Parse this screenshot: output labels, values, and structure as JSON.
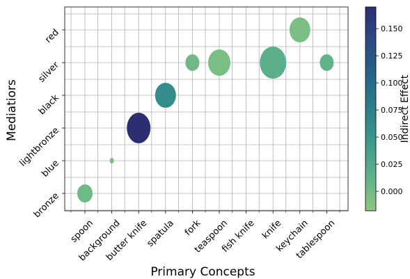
{
  "chart_data": {
    "type": "scatter",
    "subtype": "bubble",
    "title": "",
    "xlabel": "Primary Concepts",
    "ylabel": "Mediatiors",
    "x_categories": [
      "spoon",
      "background",
      "butter knife",
      "spatula",
      "fork",
      "teaspoon",
      "fish knife",
      "knife",
      "keychain",
      "tablespoon"
    ],
    "y_categories": [
      "bronze",
      "blue",
      "lightbronze",
      "black",
      "silver",
      "red"
    ],
    "grid": true,
    "colorbar": {
      "label": "Indirect Effect",
      "range": [
        -0.018,
        0.17
      ],
      "ticks": [
        0.0,
        0.025,
        0.05,
        0.075,
        0.1,
        0.125,
        0.15
      ],
      "tick_labels": [
        "0.000",
        "0.025",
        "0.050",
        "0.075",
        "0.100",
        "0.125",
        "0.150"
      ],
      "colormap": "crest",
      "stops": [
        "#8fc680",
        "#5fb28b",
        "#3d9a8b",
        "#2c7f8a",
        "#256489",
        "#2b4b83",
        "#2c2f6f"
      ]
    },
    "points": [
      {
        "x": "spoon",
        "y": "bronze",
        "value": 0.003
      },
      {
        "x": "background",
        "y": "blue",
        "value": -0.004
      },
      {
        "x": "butter knife",
        "y": "lightbronze",
        "value": 0.17
      },
      {
        "x": "spatula",
        "y": "black",
        "value": 0.06
      },
      {
        "x": "fork",
        "y": "silver",
        "value": 0.002
      },
      {
        "x": "teaspoon",
        "y": "silver",
        "value": -0.005
      },
      {
        "x": "fish knife",
        "y": "silver",
        "value": 0.0
      },
      {
        "x": "knife",
        "y": "silver",
        "value": 0.017
      },
      {
        "x": "keychain",
        "y": "red",
        "value": -0.006
      },
      {
        "x": "tablespoon",
        "y": "silver",
        "value": 0.012
      }
    ]
  }
}
